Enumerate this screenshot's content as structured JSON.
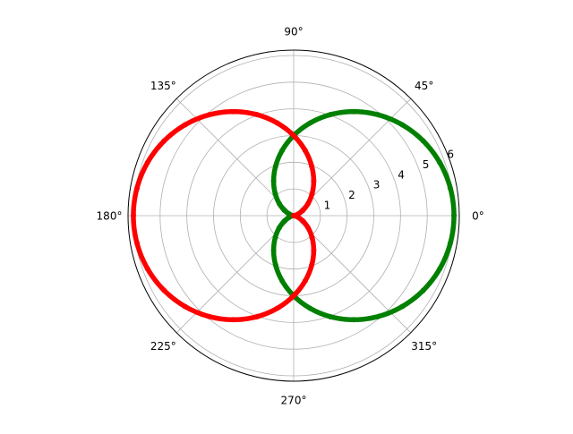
{
  "chart_data": {
    "type": "scatter",
    "projection": "polar",
    "title": "",
    "grid": true,
    "rlim": [
      0,
      6.2
    ],
    "r_ticks": [
      1,
      2,
      3,
      4,
      5,
      6
    ],
    "r_tick_labels": [
      "1",
      "2",
      "3",
      "4",
      "5",
      "6"
    ],
    "theta_ticks_deg": [
      0,
      45,
      90,
      135,
      180,
      225,
      270,
      315
    ],
    "theta_tick_labels": [
      "0°",
      "45°",
      "90°",
      "135°",
      "180°",
      "225°",
      "270°",
      "315°"
    ],
    "series": [
      {
        "color": "#008000",
        "equation": "r = 3 + 3*cos(theta)",
        "theta_deg": [
          0,
          10,
          20,
          30,
          40,
          50,
          60,
          70,
          80,
          90,
          100,
          110,
          120,
          130,
          140,
          150,
          160,
          170,
          180,
          190,
          200,
          210,
          220,
          230,
          240,
          250,
          260,
          270,
          280,
          290,
          300,
          310,
          320,
          330,
          340,
          350,
          360
        ],
        "r": [
          6.0,
          5.95,
          5.82,
          5.6,
          5.3,
          4.93,
          4.5,
          4.03,
          3.52,
          3.0,
          2.48,
          1.97,
          1.5,
          1.07,
          0.7,
          0.4,
          0.18,
          0.05,
          0.0,
          0.05,
          0.18,
          0.4,
          0.7,
          1.07,
          1.5,
          1.97,
          2.48,
          3.0,
          3.52,
          4.03,
          4.5,
          4.93,
          5.3,
          5.6,
          5.82,
          5.95,
          6.0
        ]
      },
      {
        "color": "#ff0000",
        "equation": "r = 3 - 3*cos(theta)",
        "theta_deg": [
          0,
          10,
          20,
          30,
          40,
          50,
          60,
          70,
          80,
          90,
          100,
          110,
          120,
          130,
          140,
          150,
          160,
          170,
          180,
          190,
          200,
          210,
          220,
          230,
          240,
          250,
          260,
          270,
          280,
          290,
          300,
          310,
          320,
          330,
          340,
          350,
          360
        ],
        "r": [
          0.0,
          0.05,
          0.18,
          0.4,
          0.7,
          1.07,
          1.5,
          1.97,
          2.48,
          3.0,
          3.52,
          4.03,
          4.5,
          4.93,
          5.3,
          5.6,
          5.82,
          5.95,
          6.0,
          5.95,
          5.82,
          5.6,
          5.3,
          4.93,
          4.5,
          4.03,
          3.52,
          3.0,
          2.48,
          1.97,
          1.5,
          1.07,
          0.7,
          0.4,
          0.18,
          0.05,
          0.0
        ]
      }
    ]
  }
}
